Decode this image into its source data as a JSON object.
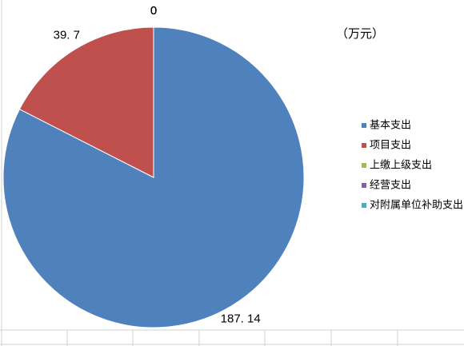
{
  "chart_data": {
    "type": "pie",
    "annotation": "（万元）",
    "categories": [
      "基本支出",
      "项目支出",
      "上缴上级支出",
      "经营支出",
      "对附属单位补助支出"
    ],
    "values": [
      187.14,
      39.7,
      0,
      0,
      0
    ],
    "value_labels": [
      "187. 14",
      "39. 7",
      "0",
      "0",
      "0"
    ],
    "colors": [
      "#4f81bd",
      "#c0504d",
      "#9bbb59",
      "#8064a2",
      "#4bacc6"
    ],
    "legend": "right"
  }
}
